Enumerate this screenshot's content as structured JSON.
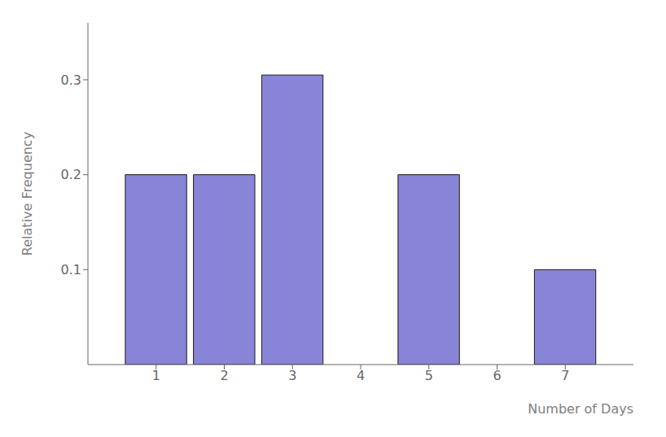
{
  "chart_data": {
    "type": "bar",
    "x": [
      1,
      2,
      3,
      5,
      7
    ],
    "values": [
      0.2,
      0.2,
      0.305,
      0.2,
      0.1
    ],
    "xlabel": "Number of Days",
    "ylabel": "Relative Frequency",
    "xlim": [
      0,
      8
    ],
    "xticks": [
      1,
      2,
      3,
      4,
      5,
      6,
      7
    ],
    "ylim": [
      0,
      0.36
    ],
    "yticks": [
      0.1,
      0.2,
      0.3
    ],
    "color": "#8884d8",
    "grid": false
  }
}
